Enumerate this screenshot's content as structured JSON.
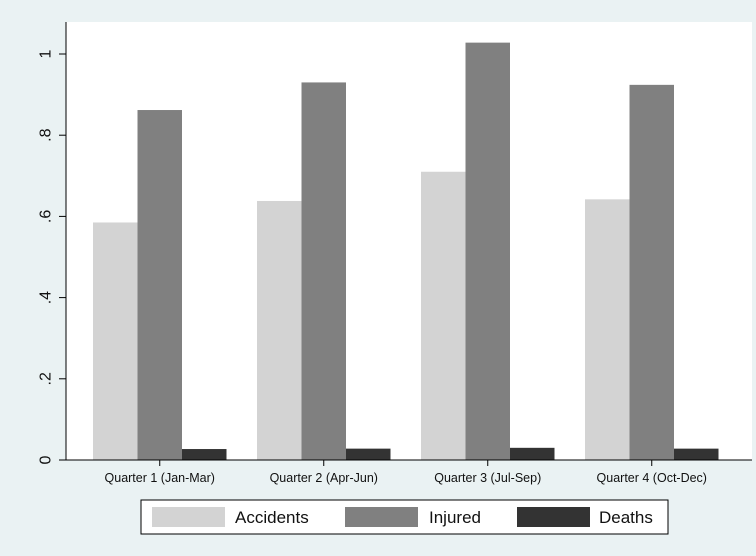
{
  "chart_data": {
    "type": "bar",
    "title": "",
    "xlabel": "",
    "ylabel": "",
    "categories": [
      "Quarter 1 (Jan-Mar)",
      "Quarter 2 (Apr-Jun)",
      "Quarter 3 (Jul-Sep)",
      "Quarter 4 (Oct-Dec)"
    ],
    "series": [
      {
        "name": "Accidents",
        "values": [
          0.585,
          0.638,
          0.71,
          0.642
        ],
        "color": "#d3d3d3"
      },
      {
        "name": "Injured",
        "values": [
          0.862,
          0.93,
          1.028,
          0.924
        ],
        "color": "#808080"
      },
      {
        "name": "Deaths",
        "values": [
          0.027,
          0.028,
          0.03,
          0.028
        ],
        "color": "#333333"
      }
    ],
    "ylim": [
      0,
      1.08
    ],
    "yticks": [
      0,
      0.2,
      0.4,
      0.6,
      0.8,
      1
    ],
    "ytick_labels": [
      "0",
      ".2",
      ".4",
      ".6",
      ".8",
      "1"
    ],
    "grid": false,
    "legend_position": "bottom",
    "colors": {
      "background": "#eaf2f3",
      "plot_background": "#ffffff"
    }
  }
}
